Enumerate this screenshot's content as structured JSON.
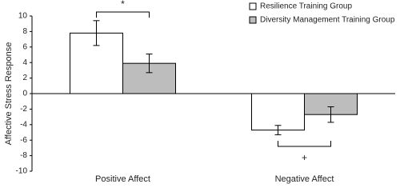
{
  "chart_data": {
    "type": "bar",
    "y_label": "Affective Stress Response",
    "categories": [
      "Positive Affect",
      "Negative Affect"
    ],
    "series": [
      {
        "name": "Resilience Training Group",
        "color": "#ffffff",
        "values": [
          7.8,
          -4.7
        ],
        "errors": [
          1.6,
          0.6
        ]
      },
      {
        "name": "Diversity Management Training Group",
        "color": "#bdbdbd",
        "values": [
          3.9,
          -2.7
        ],
        "errors": [
          1.2,
          1.0
        ]
      }
    ],
    "ylim": [
      -10,
      10
    ],
    "yticks": [
      -10,
      -8,
      -6,
      -4,
      -2,
      0,
      2,
      4,
      6,
      8,
      10
    ],
    "annotations": [
      "*",
      "+"
    ],
    "grid": false,
    "legend": "top-right"
  }
}
